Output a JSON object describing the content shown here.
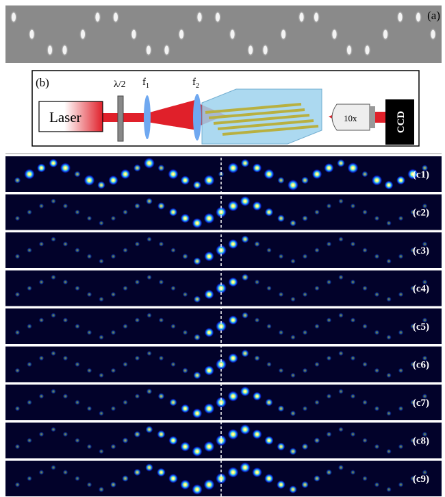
{
  "panel_a": {
    "label": "(a)"
  },
  "panel_b": {
    "label": "(b)",
    "laser": "Laser",
    "waveplate": "λ/2",
    "lens1": {
      "symbol": "f",
      "subscript": "1"
    },
    "lens2": {
      "symbol": "f",
      "subscript": "2"
    },
    "objective": "10x",
    "camera": "CCD"
  },
  "panel_c": {
    "labels": [
      "(c1)",
      "(c2)",
      "(c3)",
      "(c4)",
      "(c5)",
      "(c6)",
      "(c7)",
      "(c8)",
      "(c9)"
    ]
  }
}
